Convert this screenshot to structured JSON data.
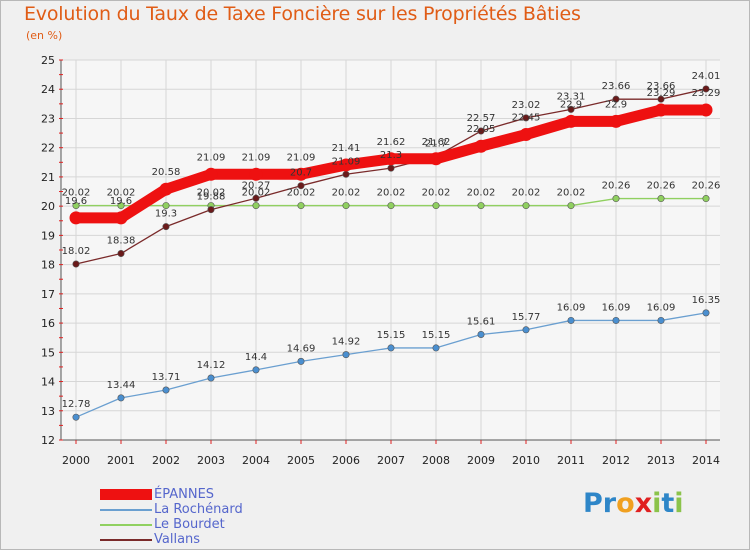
{
  "title": "Evolution du Taux de Taxe Foncière sur les Propriétés Bâties",
  "unit": "(en %)",
  "logo": {
    "letters": [
      "P",
      "r",
      "o",
      "x",
      "i",
      "t",
      "i"
    ],
    "colors": [
      "#2e86c8",
      "#2e86c8",
      "#f0a020",
      "#e02020",
      "#8bc34a",
      "#2e86c8",
      "#8bc34a"
    ]
  },
  "chart_data": {
    "type": "line",
    "title": "Evolution du Taux de Taxe Foncière sur les Propriétés Bâties",
    "ylabel": "(en %)",
    "x": [
      "2000",
      "2001",
      "2002",
      "2003",
      "2004",
      "2005",
      "2006",
      "2007",
      "2008",
      "2009",
      "2010",
      "2011",
      "2012",
      "2013",
      "2014"
    ],
    "ylim": [
      12,
      25
    ],
    "yticks": [
      "12",
      "13",
      "14",
      "15",
      "16",
      "17",
      "18",
      "19",
      "20",
      "21",
      "22",
      "23",
      "24",
      "25"
    ],
    "grid": true,
    "legend_position": "bottom-left",
    "series": [
      {
        "name": "ÉPANNES",
        "color": "#ee1111",
        "values": [
          19.6,
          19.6,
          20.58,
          21.09,
          21.09,
          21.09,
          21.41,
          21.62,
          21.62,
          22.05,
          22.45,
          22.9,
          22.9,
          23.29,
          23.29
        ],
        "labels": [
          "19.6",
          "19.6",
          "20.58",
          "21.09",
          "21.09",
          "21.09",
          "21.41",
          "21.62",
          "21.62",
          "22.05",
          "22.45",
          "22.9",
          "22.9",
          "23.29",
          "23.29"
        ]
      },
      {
        "name": "La Rochénard",
        "color": "#6a9fd0",
        "values": [
          12.78,
          13.44,
          13.71,
          14.12,
          14.4,
          14.69,
          14.92,
          15.15,
          15.15,
          15.61,
          15.77,
          16.09,
          16.09,
          16.09,
          16.35
        ],
        "labels": [
          "12.78",
          "13.44",
          "13.71",
          "14.12",
          "14.4",
          "14.69",
          "14.92",
          "15.15",
          "15.15",
          "15.61",
          "15.77",
          "16.09",
          "16.09",
          "16.09",
          "16.35"
        ]
      },
      {
        "name": "Le Bourdet",
        "color": "#90d060",
        "values": [
          20.02,
          20.02,
          20.02,
          20.02,
          20.02,
          20.02,
          20.02,
          20.02,
          20.02,
          20.02,
          20.02,
          20.02,
          20.26,
          20.26,
          20.26
        ],
        "labels": [
          "20.02",
          "20.02",
          "",
          "20.02",
          "20.02",
          "20.02",
          "20.02",
          "20.02",
          "20.02",
          "20.02",
          "20.02",
          "20.02",
          "20.26",
          "20.26",
          "20.26"
        ]
      },
      {
        "name": "Vallans",
        "color": "#7a2a2a",
        "values": [
          18.02,
          18.38,
          19.3,
          19.88,
          20.27,
          20.7,
          21.09,
          21.3,
          21.7,
          22.57,
          23.02,
          23.31,
          23.66,
          23.66,
          24.01
        ],
        "labels": [
          "18.02",
          "18.38",
          "19.3",
          "19.88",
          "20.27",
          "20.7",
          "21.09",
          "21.3",
          "21.7",
          "22.57",
          "23.02",
          "23.31",
          "23.66",
          "23.66",
          "24.01"
        ]
      }
    ]
  }
}
